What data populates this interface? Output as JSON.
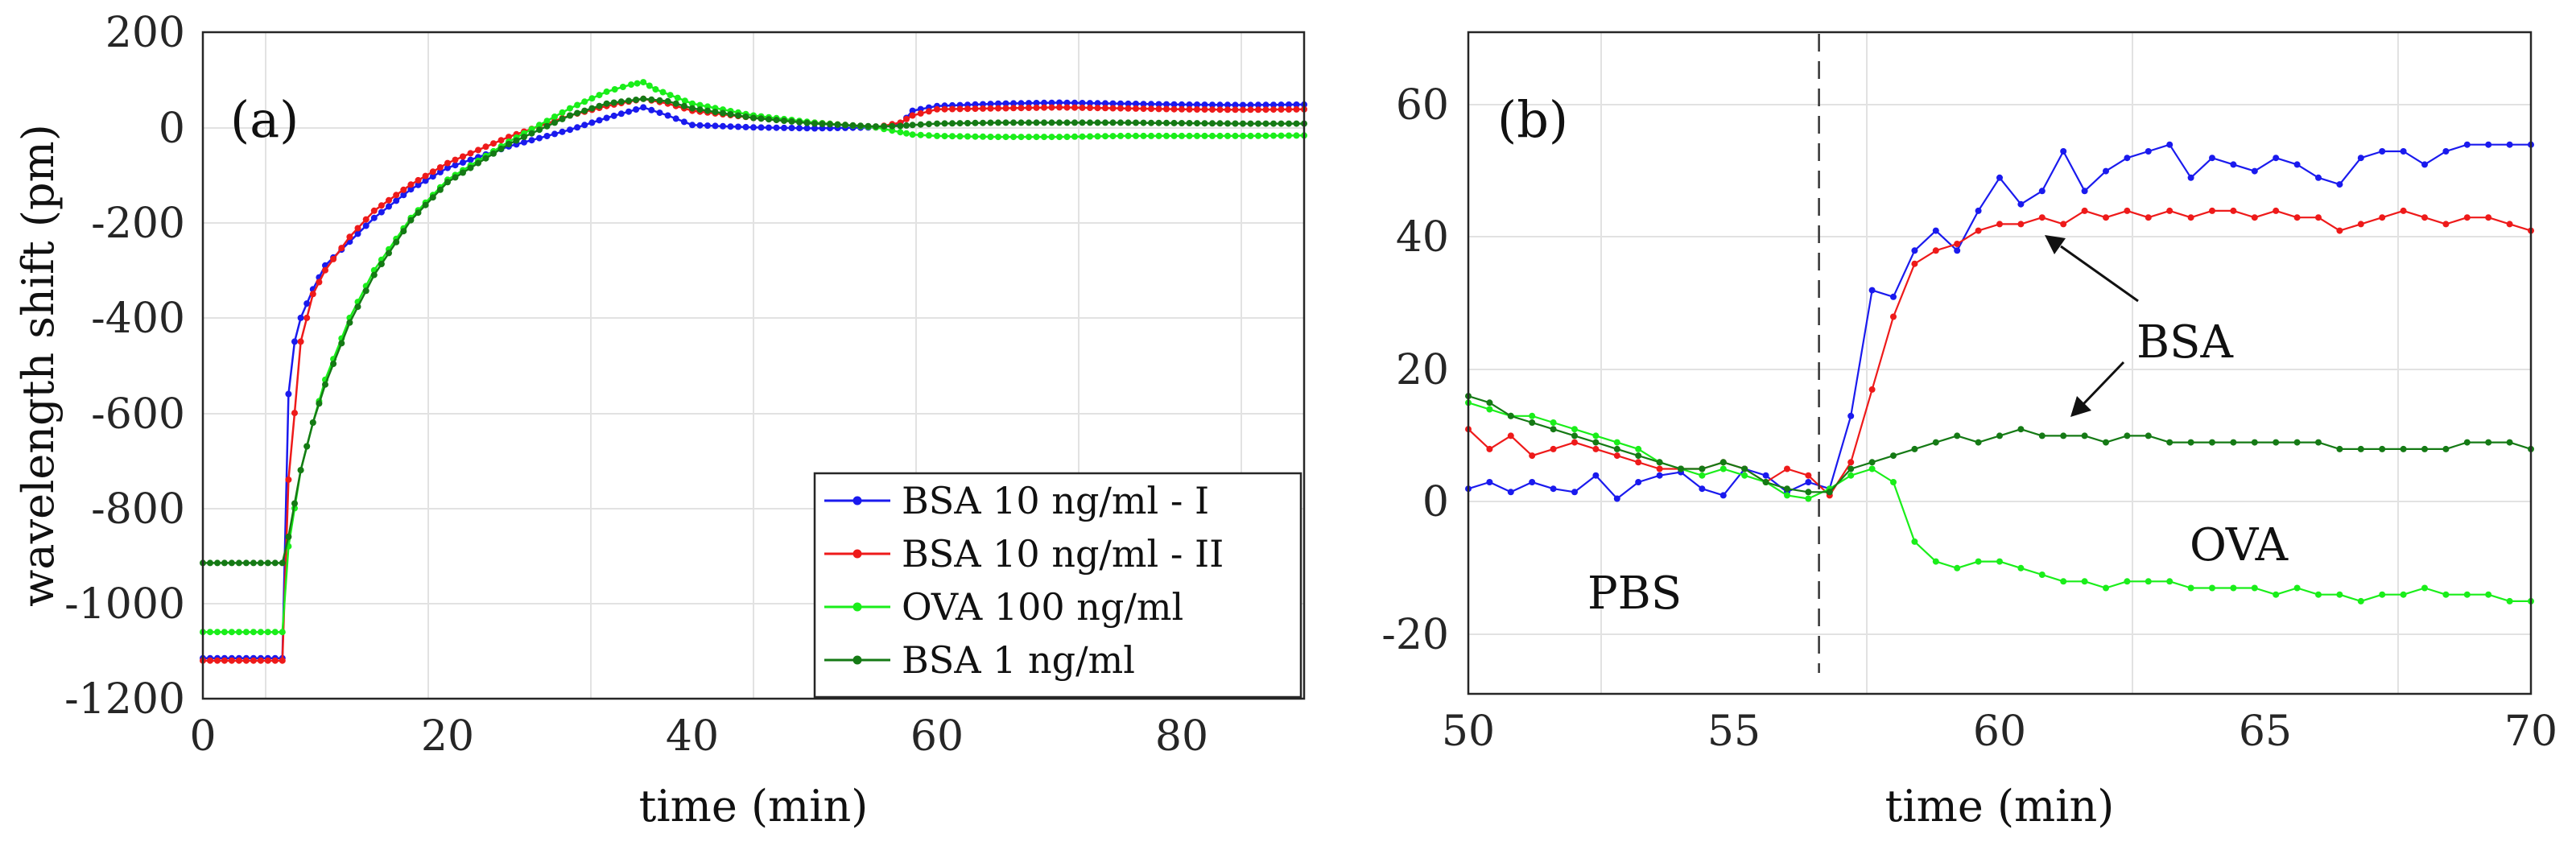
{
  "figure": {
    "panels": [
      {
        "label": "(a)",
        "xlabel": "time (min)",
        "ylabel": "wavelength shift (pm)",
        "xlim": [
          0,
          90
        ],
        "ylim": [
          -1200,
          200
        ],
        "xticks": [
          "0",
          "20",
          "40",
          "60",
          "80"
        ],
        "yticks": [
          "200",
          "0",
          "-200",
          "-400",
          "-600",
          "-800",
          "-1000",
          "-1200"
        ]
      },
      {
        "label": "(b)",
        "xlabel": "time (min)",
        "ylabel": "",
        "xlim": [
          50,
          70
        ],
        "ylim": [
          -30,
          70
        ],
        "xticks": [
          "50",
          "55",
          "60",
          "65",
          "70"
        ],
        "yticks": [
          "60",
          "40",
          "20",
          "0",
          "-20"
        ],
        "annotations": {
          "pbs": "PBS",
          "bsa": "BSA",
          "ova": "OVA",
          "injection_time": 56.6
        }
      }
    ],
    "legend": [
      {
        "label": "BSA 10 ng/ml - I",
        "color": "#1a1aee"
      },
      {
        "label": "BSA 10 ng/ml - II",
        "color": "#ee1a1a"
      },
      {
        "label": "OVA 100 ng/ml",
        "color": "#1aee1a"
      },
      {
        "label": "BSA 1 ng/ml",
        "color": "#157a15"
      }
    ]
  },
  "chart_data": [
    {
      "type": "line",
      "title": "",
      "panel": "(a)",
      "xlabel": "time (min)",
      "ylabel": "wavelength shift (pm)",
      "xlim": [
        0,
        90
      ],
      "ylim": [
        -1200,
        200
      ],
      "grid": true,
      "legend_position": "bottom-right",
      "series": [
        {
          "name": "BSA 10 ng/ml - I",
          "color": "#1a1aee",
          "x": [
            0,
            6.5,
            7,
            7.5,
            8,
            9,
            10,
            12,
            14,
            17,
            20,
            25,
            30,
            33,
            36,
            38,
            40,
            45,
            50,
            55,
            57,
            58,
            60,
            65,
            70,
            75,
            80,
            85,
            90
          ],
          "y": [
            -1115,
            -1115,
            -560,
            -450,
            -400,
            -340,
            -290,
            -240,
            -190,
            -130,
            -85,
            -40,
            -5,
            20,
            42,
            25,
            5,
            0,
            -2,
            0,
            5,
            35,
            45,
            50,
            52,
            50,
            48,
            47,
            48
          ]
        },
        {
          "name": "BSA 10 ng/ml - II",
          "color": "#ee1a1a",
          "x": [
            0,
            6.5,
            7,
            7.5,
            8,
            9,
            10,
            12,
            14,
            17,
            20,
            25,
            30,
            33,
            36,
            38,
            40,
            45,
            50,
            55,
            57,
            58,
            60,
            65,
            70,
            75,
            80,
            85,
            90
          ],
          "y": [
            -1120,
            -1120,
            -740,
            -600,
            -450,
            -350,
            -300,
            -230,
            -175,
            -120,
            -75,
            -20,
            25,
            45,
            60,
            50,
            35,
            20,
            10,
            0,
            10,
            25,
            38,
            40,
            42,
            40,
            38,
            37,
            38
          ]
        },
        {
          "name": "OVA 100 ng/ml",
          "color": "#1aee1a",
          "x": [
            0,
            6.5,
            7,
            8,
            9,
            10,
            12,
            14,
            17,
            20,
            25,
            30,
            33,
            35,
            36,
            37,
            40,
            45,
            50,
            55,
            57,
            58,
            60,
            65,
            70,
            75,
            80,
            85,
            90
          ],
          "y": [
            -1060,
            -1060,
            -880,
            -720,
            -620,
            -530,
            -400,
            -300,
            -190,
            -110,
            -30,
            40,
            75,
            90,
            95,
            80,
            50,
            25,
            10,
            0,
            -10,
            -15,
            -18,
            -20,
            -20,
            -18,
            -18,
            -18,
            -17
          ]
        },
        {
          "name": "BSA 1 ng/ml",
          "color": "#157a15",
          "x": [
            0,
            6.5,
            7,
            8,
            9,
            10,
            12,
            14,
            17,
            20,
            25,
            30,
            33,
            36,
            38,
            40,
            45,
            50,
            55,
            57,
            58,
            60,
            65,
            70,
            75,
            80,
            85,
            90
          ],
          "y": [
            -915,
            -915,
            -860,
            -720,
            -620,
            -540,
            -410,
            -310,
            -195,
            -115,
            -35,
            25,
            50,
            60,
            55,
            40,
            20,
            8,
            2,
            3,
            5,
            8,
            10,
            10,
            10,
            9,
            8,
            8
          ]
        }
      ]
    },
    {
      "type": "line",
      "title": "",
      "panel": "(b)",
      "xlabel": "time (min)",
      "ylabel": "",
      "xlim": [
        50,
        70
      ],
      "ylim": [
        -30,
        70
      ],
      "grid": true,
      "series": [
        {
          "name": "BSA 10 ng/ml - I",
          "color": "#1a1aee",
          "x": [
            50,
            50.4,
            50.8,
            51.2,
            51.6,
            52.0,
            52.4,
            52.8,
            53.2,
            53.6,
            54.0,
            54.4,
            54.8,
            55.2,
            55.6,
            56.0,
            56.4,
            56.8,
            57.2,
            57.6,
            58.0,
            58.4,
            58.8,
            59.2,
            59.6,
            60.0,
            60.4,
            60.8,
            61.2,
            61.6,
            62.0,
            62.4,
            62.8,
            63.2,
            63.6,
            64.0,
            64.4,
            64.8,
            65.2,
            65.6,
            66.0,
            66.4,
            66.8,
            67.2,
            67.6,
            68.0,
            68.4,
            68.8,
            69.2,
            69.6,
            70.0
          ],
          "y": [
            1,
            2,
            0.5,
            2,
            1,
            0.5,
            3,
            -0.5,
            2,
            3,
            3.5,
            1,
            0,
            4,
            3,
            0.5,
            2,
            1,
            12,
            31,
            30,
            37,
            40,
            37,
            43,
            48,
            44,
            46,
            52,
            46,
            49,
            51,
            52,
            53,
            48,
            51,
            50,
            49,
            51,
            50,
            48,
            47,
            51,
            52,
            52,
            50,
            52,
            53,
            53,
            53,
            53
          ]
        },
        {
          "name": "BSA 10 ng/ml - II",
          "color": "#ee1a1a",
          "x": [
            50,
            50.4,
            50.8,
            51.2,
            51.6,
            52.0,
            52.4,
            52.8,
            53.2,
            53.6,
            54.0,
            54.4,
            54.8,
            55.2,
            55.6,
            56.0,
            56.4,
            56.8,
            57.2,
            57.6,
            58.0,
            58.4,
            58.8,
            59.2,
            59.6,
            60.0,
            60.4,
            60.8,
            61.2,
            61.6,
            62.0,
            62.4,
            62.8,
            63.2,
            63.6,
            64.0,
            64.4,
            64.8,
            65.2,
            65.6,
            66.0,
            66.4,
            66.8,
            67.2,
            67.6,
            68.0,
            68.4,
            68.8,
            69.2,
            69.6,
            70.0
          ],
          "y": [
            10,
            7,
            9,
            6,
            7,
            8,
            7,
            6,
            5,
            4,
            4,
            4,
            5,
            4,
            2,
            4,
            3,
            0,
            5,
            16,
            27,
            35,
            37,
            38,
            40,
            41,
            41,
            42,
            41,
            43,
            42,
            43,
            42,
            43,
            42,
            43,
            43,
            42,
            43,
            42,
            42,
            40,
            41,
            42,
            43,
            42,
            41,
            42,
            42,
            41,
            40
          ]
        },
        {
          "name": "OVA 100 ng/ml",
          "color": "#1aee1a",
          "x": [
            50,
            50.4,
            50.8,
            51.2,
            51.6,
            52.0,
            52.4,
            52.8,
            53.2,
            53.6,
            54.0,
            54.4,
            54.8,
            55.2,
            55.6,
            56.0,
            56.4,
            56.8,
            57.2,
            57.6,
            58.0,
            58.4,
            58.8,
            59.2,
            59.6,
            60.0,
            60.4,
            60.8,
            61.2,
            61.6,
            62.0,
            62.4,
            62.8,
            63.2,
            63.6,
            64.0,
            64.4,
            64.8,
            65.2,
            65.6,
            66.0,
            66.4,
            66.8,
            67.2,
            67.6,
            68.0,
            68.4,
            68.8,
            69.2,
            69.6,
            70.0
          ],
          "y": [
            14,
            13,
            12,
            12,
            11,
            10,
            9,
            8,
            7,
            5,
            4,
            3,
            4,
            3,
            2,
            0,
            -0.5,
            1,
            3,
            4,
            2,
            -7,
            -10,
            -11,
            -10,
            -10,
            -11,
            -12,
            -13,
            -13,
            -14,
            -13,
            -13,
            -13,
            -14,
            -14,
            -14,
            -14,
            -15,
            -14,
            -15,
            -15,
            -16,
            -15,
            -15,
            -14,
            -15,
            -15,
            -15,
            -16,
            -16
          ]
        },
        {
          "name": "BSA 1 ng/ml",
          "color": "#157a15",
          "x": [
            50,
            50.4,
            50.8,
            51.2,
            51.6,
            52.0,
            52.4,
            52.8,
            53.2,
            53.6,
            54.0,
            54.4,
            54.8,
            55.2,
            55.6,
            56.0,
            56.4,
            56.8,
            57.2,
            57.6,
            58.0,
            58.4,
            58.8,
            59.2,
            59.6,
            60.0,
            60.4,
            60.8,
            61.2,
            61.6,
            62.0,
            62.4,
            62.8,
            63.2,
            63.6,
            64.0,
            64.4,
            64.8,
            65.2,
            65.6,
            66.0,
            66.4,
            66.8,
            67.2,
            67.6,
            68.0,
            68.4,
            68.8,
            69.2,
            69.6,
            70.0
          ],
          "y": [
            15,
            14,
            12,
            11,
            10,
            9,
            8,
            7,
            6,
            5,
            4,
            4,
            5,
            4,
            2,
            1,
            0.5,
            0.5,
            4,
            5,
            6,
            7,
            8,
            9,
            8,
            9,
            10,
            9,
            9,
            9,
            8,
            9,
            9,
            8,
            8,
            8,
            8,
            8,
            8,
            8,
            8,
            7,
            7,
            7,
            7,
            7,
            7,
            8,
            8,
            8,
            7
          ]
        }
      ]
    }
  ]
}
